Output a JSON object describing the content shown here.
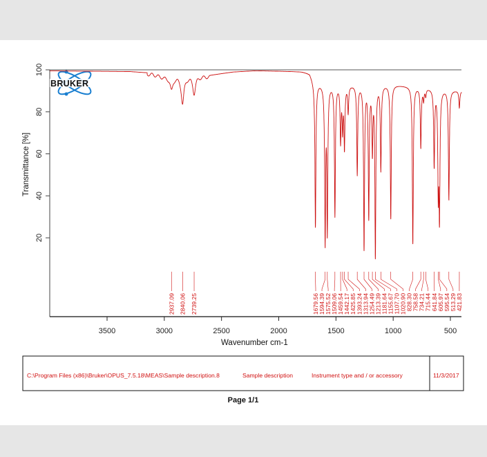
{
  "chart_data": {
    "type": "line",
    "title": "",
    "xlabel": "Wavenumber cm-1",
    "ylabel": "Transmittance [%]",
    "xlim": [
      4000,
      400
    ],
    "ylim": [
      -17,
      100
    ],
    "x_ticks": [
      3500,
      3000,
      2500,
      2000,
      1500,
      1000,
      500
    ],
    "y_ticks": [
      20,
      40,
      60,
      80,
      100
    ],
    "grid": false,
    "legend": "none",
    "line_color": "#cc1111",
    "baseline": [
      [
        4000,
        99.5
      ],
      [
        3300,
        99.2
      ],
      [
        3100,
        98.5
      ],
      [
        3000,
        97
      ],
      [
        2600,
        97.5
      ],
      [
        2400,
        99
      ],
      [
        2200,
        99.6
      ],
      [
        1800,
        99.2
      ],
      [
        1730,
        98.5
      ],
      [
        1690,
        94
      ],
      [
        1500,
        93
      ],
      [
        1000,
        93
      ],
      [
        600,
        91
      ],
      [
        400,
        90
      ]
    ],
    "peaks": [
      {
        "label": "2937.09",
        "wavenumber": 2937.09,
        "t_min": 91
      },
      {
        "label": "2840.06",
        "wavenumber": 2840.06,
        "t_min": 84.5
      },
      {
        "label": "2739.25",
        "wavenumber": 2739.25,
        "t_min": 89.5
      },
      {
        "label": "1679.56",
        "wavenumber": 1679.56,
        "t_min": 25
      },
      {
        "label": "1594.39",
        "wavenumber": 1594.39,
        "t_min": 16
      },
      {
        "label": "1575.52",
        "wavenumber": 1575.52,
        "t_min": 21
      },
      {
        "label": "1509.06",
        "wavenumber": 1509.06,
        "t_min": 30
      },
      {
        "label": "1459.54",
        "wavenumber": 1459.54,
        "t_min": 66
      },
      {
        "label": "1442.17",
        "wavenumber": 1442.17,
        "t_min": 72
      },
      {
        "label": "1425.85",
        "wavenumber": 1425.85,
        "t_min": 63
      },
      {
        "label": "1393.24",
        "wavenumber": 1393.24,
        "t_min": 80
      },
      {
        "label": "1313.94",
        "wavenumber": 1313.94,
        "t_min": 50
      },
      {
        "label": "1254.49",
        "wavenumber": 1254.49,
        "t_min": 14
      },
      {
        "label": "1213.39",
        "wavenumber": 1213.39,
        "t_min": 29
      },
      {
        "label": "1181.64",
        "wavenumber": 1181.64,
        "t_min": 61
      },
      {
        "label": "1155.67",
        "wavenumber": 1155.67,
        "t_min": 10
      },
      {
        "label": "1107.70",
        "wavenumber": 1107.7,
        "t_min": 52
      },
      {
        "label": "1020.90",
        "wavenumber": 1020.9,
        "t_min": 29
      },
      {
        "label": "828.30",
        "wavenumber": 828.3,
        "t_min": 17
      },
      {
        "label": "758.58",
        "wavenumber": 758.58,
        "t_min": 63
      },
      {
        "label": "734.21",
        "wavenumber": 734.21,
        "t_min": 86
      },
      {
        "label": "715.44",
        "wavenumber": 715.44,
        "t_min": 88
      },
      {
        "label": "641.84",
        "wavenumber": 641.84,
        "t_min": 54
      },
      {
        "label": "605.97",
        "wavenumber": 605.97,
        "t_min": 40
      },
      {
        "label": "595.54",
        "wavenumber": 595.54,
        "t_min": 28
      },
      {
        "label": "513.29",
        "wavenumber": 513.29,
        "t_min": 38
      },
      {
        "label": "421.83",
        "wavenumber": 421.83,
        "t_min": 82
      }
    ]
  },
  "logo": {
    "text": "BRUKER",
    "color": "#1a7fd0"
  },
  "footer": {
    "file_path": "C:\\Program Files (x86)\\Bruker\\OPUS_7.5.18\\MEAS\\Sample description.8",
    "sample_description": "Sample description",
    "instrument": "Instrument type and / or accessory",
    "date": "11/3/2017"
  },
  "page_label": "Page 1/1"
}
